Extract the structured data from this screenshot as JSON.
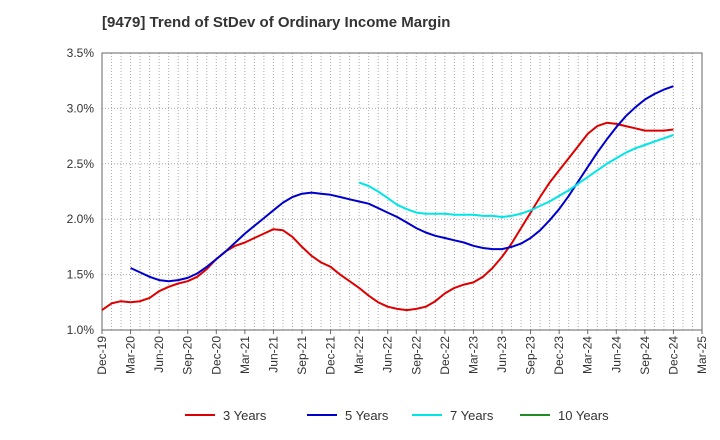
{
  "chart_data": {
    "type": "line",
    "title": "[9479]  Trend of StDev of Ordinary Income Margin",
    "xlabel": "",
    "ylabel": "",
    "x_ticks": [
      "Dec-19",
      "Mar-20",
      "Jun-20",
      "Sep-20",
      "Dec-20",
      "Mar-21",
      "Jun-21",
      "Sep-21",
      "Dec-21",
      "Mar-22",
      "Jun-22",
      "Sep-22",
      "Dec-22",
      "Mar-23",
      "Jun-23",
      "Sep-23",
      "Dec-23",
      "Mar-24",
      "Jun-24",
      "Sep-24",
      "Dec-24",
      "Mar-25"
    ],
    "y_ticks": [
      "1.0%",
      "1.5%",
      "2.0%",
      "2.5%",
      "3.0%",
      "3.5%"
    ],
    "ylim": [
      1.0,
      3.5
    ],
    "x_range": [
      "2019-12",
      "2025-03"
    ],
    "grid": true,
    "legend_position": "bottom",
    "series": [
      {
        "name": "3 Years",
        "color": "#dd0000",
        "points": [
          [
            "2019-12",
            1.18
          ],
          [
            "2020-01",
            1.24
          ],
          [
            "2020-02",
            1.26
          ],
          [
            "2020-03",
            1.25
          ],
          [
            "2020-04",
            1.26
          ],
          [
            "2020-05",
            1.29
          ],
          [
            "2020-06",
            1.35
          ],
          [
            "2020-07",
            1.39
          ],
          [
            "2020-08",
            1.42
          ],
          [
            "2020-09",
            1.44
          ],
          [
            "2020-10",
            1.48
          ],
          [
            "2020-11",
            1.55
          ],
          [
            "2020-12",
            1.64
          ],
          [
            "2021-01",
            1.71
          ],
          [
            "2021-02",
            1.76
          ],
          [
            "2021-03",
            1.79
          ],
          [
            "2021-04",
            1.83
          ],
          [
            "2021-05",
            1.87
          ],
          [
            "2021-06",
            1.91
          ],
          [
            "2021-07",
            1.9
          ],
          [
            "2021-08",
            1.84
          ],
          [
            "2021-09",
            1.75
          ],
          [
            "2021-10",
            1.67
          ],
          [
            "2021-11",
            1.61
          ],
          [
            "2021-12",
            1.57
          ],
          [
            "2022-01",
            1.5
          ],
          [
            "2022-02",
            1.44
          ],
          [
            "2022-03",
            1.38
          ],
          [
            "2022-04",
            1.31
          ],
          [
            "2022-05",
            1.25
          ],
          [
            "2022-06",
            1.21
          ],
          [
            "2022-07",
            1.19
          ],
          [
            "2022-08",
            1.18
          ],
          [
            "2022-09",
            1.19
          ],
          [
            "2022-10",
            1.21
          ],
          [
            "2022-11",
            1.26
          ],
          [
            "2022-12",
            1.33
          ],
          [
            "2023-01",
            1.38
          ],
          [
            "2023-02",
            1.41
          ],
          [
            "2023-03",
            1.43
          ],
          [
            "2023-04",
            1.48
          ],
          [
            "2023-05",
            1.56
          ],
          [
            "2023-06",
            1.66
          ],
          [
            "2023-07",
            1.78
          ],
          [
            "2023-08",
            1.92
          ],
          [
            "2023-09",
            2.06
          ],
          [
            "2023-10",
            2.2
          ],
          [
            "2023-11",
            2.33
          ],
          [
            "2023-12",
            2.44
          ],
          [
            "2024-01",
            2.55
          ],
          [
            "2024-02",
            2.66
          ],
          [
            "2024-03",
            2.77
          ],
          [
            "2024-04",
            2.84
          ],
          [
            "2024-05",
            2.87
          ],
          [
            "2024-06",
            2.86
          ],
          [
            "2024-07",
            2.84
          ],
          [
            "2024-08",
            2.82
          ],
          [
            "2024-09",
            2.8
          ],
          [
            "2024-10",
            2.8
          ],
          [
            "2024-11",
            2.8
          ],
          [
            "2024-12",
            2.81
          ]
        ]
      },
      {
        "name": "5 Years",
        "color": "#0000cc",
        "points": [
          [
            "2020-03",
            1.56
          ],
          [
            "2020-04",
            1.52
          ],
          [
            "2020-05",
            1.48
          ],
          [
            "2020-06",
            1.45
          ],
          [
            "2020-07",
            1.44
          ],
          [
            "2020-08",
            1.45
          ],
          [
            "2020-09",
            1.47
          ],
          [
            "2020-10",
            1.51
          ],
          [
            "2020-11",
            1.57
          ],
          [
            "2020-12",
            1.64
          ],
          [
            "2021-01",
            1.71
          ],
          [
            "2021-02",
            1.79
          ],
          [
            "2021-03",
            1.87
          ],
          [
            "2021-04",
            1.94
          ],
          [
            "2021-05",
            2.01
          ],
          [
            "2021-06",
            2.08
          ],
          [
            "2021-07",
            2.15
          ],
          [
            "2021-08",
            2.2
          ],
          [
            "2021-09",
            2.23
          ],
          [
            "2021-10",
            2.24
          ],
          [
            "2021-11",
            2.23
          ],
          [
            "2021-12",
            2.22
          ],
          [
            "2022-01",
            2.2
          ],
          [
            "2022-02",
            2.18
          ],
          [
            "2022-03",
            2.16
          ],
          [
            "2022-04",
            2.14
          ],
          [
            "2022-05",
            2.1
          ],
          [
            "2022-06",
            2.06
          ],
          [
            "2022-07",
            2.02
          ],
          [
            "2022-08",
            1.97
          ],
          [
            "2022-09",
            1.92
          ],
          [
            "2022-10",
            1.88
          ],
          [
            "2022-11",
            1.85
          ],
          [
            "2022-12",
            1.83
          ],
          [
            "2023-01",
            1.81
          ],
          [
            "2023-02",
            1.79
          ],
          [
            "2023-03",
            1.76
          ],
          [
            "2023-04",
            1.74
          ],
          [
            "2023-05",
            1.73
          ],
          [
            "2023-06",
            1.73
          ],
          [
            "2023-07",
            1.75
          ],
          [
            "2023-08",
            1.78
          ],
          [
            "2023-09",
            1.83
          ],
          [
            "2023-10",
            1.9
          ],
          [
            "2023-11",
            1.99
          ],
          [
            "2023-12",
            2.09
          ],
          [
            "2024-01",
            2.21
          ],
          [
            "2024-02",
            2.34
          ],
          [
            "2024-03",
            2.47
          ],
          [
            "2024-04",
            2.6
          ],
          [
            "2024-05",
            2.72
          ],
          [
            "2024-06",
            2.83
          ],
          [
            "2024-07",
            2.93
          ],
          [
            "2024-08",
            3.01
          ],
          [
            "2024-09",
            3.08
          ],
          [
            "2024-10",
            3.13
          ],
          [
            "2024-11",
            3.17
          ],
          [
            "2024-12",
            3.2
          ]
        ]
      },
      {
        "name": "7 Years",
        "color": "#00e5e5",
        "points": [
          [
            "2022-03",
            2.33
          ],
          [
            "2022-04",
            2.3
          ],
          [
            "2022-05",
            2.25
          ],
          [
            "2022-06",
            2.19
          ],
          [
            "2022-07",
            2.13
          ],
          [
            "2022-08",
            2.09
          ],
          [
            "2022-09",
            2.06
          ],
          [
            "2022-10",
            2.05
          ],
          [
            "2022-11",
            2.05
          ],
          [
            "2022-12",
            2.05
          ],
          [
            "2023-01",
            2.04
          ],
          [
            "2023-02",
            2.04
          ],
          [
            "2023-03",
            2.04
          ],
          [
            "2023-04",
            2.03
          ],
          [
            "2023-05",
            2.03
          ],
          [
            "2023-06",
            2.02
          ],
          [
            "2023-07",
            2.03
          ],
          [
            "2023-08",
            2.05
          ],
          [
            "2023-09",
            2.08
          ],
          [
            "2023-10",
            2.12
          ],
          [
            "2023-11",
            2.16
          ],
          [
            "2023-12",
            2.21
          ],
          [
            "2024-01",
            2.26
          ],
          [
            "2024-02",
            2.32
          ],
          [
            "2024-03",
            2.38
          ],
          [
            "2024-04",
            2.44
          ],
          [
            "2024-05",
            2.5
          ],
          [
            "2024-06",
            2.55
          ],
          [
            "2024-07",
            2.6
          ],
          [
            "2024-08",
            2.64
          ],
          [
            "2024-09",
            2.67
          ],
          [
            "2024-10",
            2.7
          ],
          [
            "2024-11",
            2.73
          ],
          [
            "2024-12",
            2.76
          ]
        ]
      },
      {
        "name": "10 Years",
        "color": "#228b22",
        "points": []
      }
    ]
  }
}
